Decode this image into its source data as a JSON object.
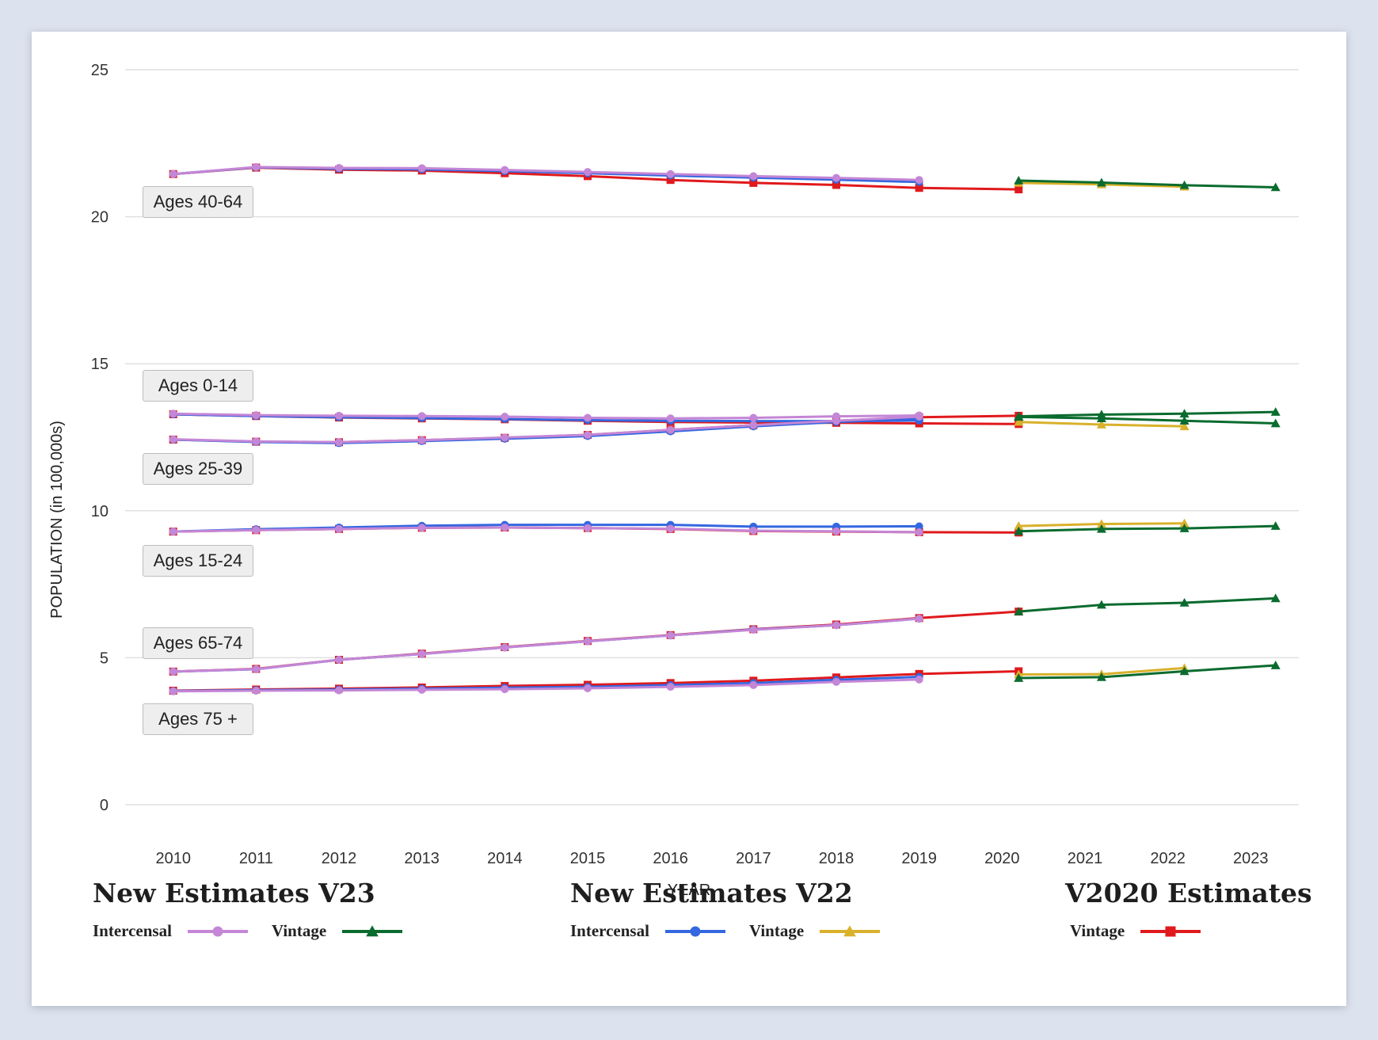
{
  "chart_data": {
    "type": "line",
    "title": "",
    "xlabel": "YEAR",
    "ylabel": "POPULATION (in 100,000s)",
    "ylim": [
      0,
      25
    ],
    "xlim": [
      2009.42,
      2023.58
    ],
    "y_ticks": [
      0,
      5,
      10,
      15,
      20,
      25
    ],
    "x_ticks": [
      2010,
      2011,
      2012,
      2013,
      2014,
      2015,
      2016,
      2017,
      2018,
      2019,
      2020,
      2021,
      2022,
      2023
    ],
    "grid": true,
    "age_groups": [
      "Ages 40-64",
      "Ages 0-14",
      "Ages 25-39",
      "Ages 15-24",
      "Ages 65-74",
      "Ages 75 +"
    ],
    "legend": [
      {
        "title": "New Estimates V23",
        "entries": [
          {
            "label": "Intercensal",
            "color": "#c486d6",
            "marker": "circle"
          },
          {
            "label": "Vintage",
            "color": "#0a6b2e",
            "marker": "triangle"
          }
        ]
      },
      {
        "title": "New Estimates V22",
        "entries": [
          {
            "label": "Intercensal",
            "color": "#3467e0",
            "marker": "circle"
          },
          {
            "label": "Vintage",
            "color": "#d9b12b",
            "marker": "triangle"
          }
        ]
      },
      {
        "title": "V2020 Estimates",
        "entries": [
          {
            "label": "Vintage",
            "color": "#e0191c",
            "marker": "square"
          }
        ]
      }
    ],
    "series": [
      {
        "estimate": "V2020 Estimates Vintage",
        "group": "Ages 40-64",
        "color": "#e0191c",
        "marker": "square",
        "x": [
          2010,
          2011,
          2012,
          2013,
          2014,
          2015,
          2016,
          2017,
          2018,
          2019,
          2020.2
        ],
        "values": [
          21.45,
          21.67,
          21.6,
          21.57,
          21.48,
          21.38,
          21.25,
          21.15,
          21.08,
          20.98,
          20.93
        ]
      },
      {
        "estimate": "New Estimates V22 Intercensal",
        "group": "Ages 40-64",
        "color": "#3467e0",
        "marker": "circle",
        "x": [
          2010,
          2011,
          2012,
          2013,
          2014,
          2015,
          2016,
          2017,
          2018,
          2019
        ],
        "values": [
          21.45,
          21.68,
          21.63,
          21.61,
          21.55,
          21.48,
          21.4,
          21.33,
          21.26,
          21.18
        ]
      },
      {
        "estimate": "New Estimates V23 Intercensal",
        "group": "Ages 40-64",
        "color": "#c486d6",
        "marker": "circle",
        "x": [
          2010,
          2011,
          2012,
          2013,
          2014,
          2015,
          2016,
          2017,
          2018,
          2019
        ],
        "values": [
          21.45,
          21.69,
          21.66,
          21.65,
          21.59,
          21.52,
          21.45,
          21.38,
          21.32,
          21.25
        ]
      },
      {
        "estimate": "New Estimates V22 Vintage",
        "group": "Ages 40-64",
        "color": "#d9b12b",
        "marker": "triangle",
        "x": [
          2020.2,
          2021.2,
          2022.2
        ],
        "values": [
          21.15,
          21.1,
          21.02
        ]
      },
      {
        "estimate": "New Estimates V23 Vintage",
        "group": "Ages 40-64",
        "color": "#0a6b2e",
        "marker": "triangle",
        "x": [
          2020.2,
          2021.2,
          2022.2,
          2023.3
        ],
        "values": [
          21.23,
          21.16,
          21.07,
          21.0
        ]
      },
      {
        "estimate": "V2020 Estimates Vintage",
        "group": "Ages 0-14",
        "color": "#e0191c",
        "marker": "square",
        "x": [
          2010,
          2011,
          2012,
          2013,
          2014,
          2015,
          2016,
          2017,
          2018,
          2019,
          2020.2
        ],
        "values": [
          13.28,
          13.22,
          13.17,
          13.14,
          13.11,
          13.06,
          13.02,
          13.0,
          12.99,
          12.97,
          12.95
        ]
      },
      {
        "estimate": "New Estimates V22 Intercensal",
        "group": "Ages 0-14",
        "color": "#3467e0",
        "marker": "circle",
        "x": [
          2010,
          2011,
          2012,
          2013,
          2014,
          2015,
          2016,
          2017,
          2018,
          2019
        ],
        "values": [
          13.28,
          13.22,
          13.18,
          13.15,
          13.12,
          13.08,
          13.06,
          13.05,
          13.05,
          13.07
        ]
      },
      {
        "estimate": "New Estimates V23 Intercensal",
        "group": "Ages 0-14",
        "color": "#c486d6",
        "marker": "circle",
        "x": [
          2010,
          2011,
          2012,
          2013,
          2014,
          2015,
          2016,
          2017,
          2018,
          2019
        ],
        "values": [
          13.3,
          13.25,
          13.23,
          13.22,
          13.2,
          13.16,
          13.14,
          13.16,
          13.21,
          13.24
        ]
      },
      {
        "estimate": "New Estimates V22 Vintage",
        "group": "Ages 0-14",
        "color": "#d9b12b",
        "marker": "triangle",
        "x": [
          2020.2,
          2021.2,
          2022.2
        ],
        "values": [
          13.02,
          12.93,
          12.87
        ]
      },
      {
        "estimate": "New Estimates V23 Vintage",
        "group": "Ages 0-14",
        "color": "#0a6b2e",
        "marker": "triangle",
        "x": [
          2020.2,
          2021.2,
          2022.2,
          2023.3
        ],
        "values": [
          13.19,
          13.14,
          13.06,
          12.97
        ]
      },
      {
        "estimate": "V2020 Estimates Vintage",
        "group": "Ages 25-39",
        "color": "#e0191c",
        "marker": "square",
        "x": [
          2010,
          2011,
          2012,
          2013,
          2014,
          2015,
          2016,
          2017,
          2018,
          2019,
          2020.2
        ],
        "values": [
          12.42,
          12.35,
          12.33,
          12.4,
          12.48,
          12.58,
          12.75,
          12.91,
          13.06,
          13.18,
          13.23
        ]
      },
      {
        "estimate": "New Estimates V22 Intercensal",
        "group": "Ages 25-39",
        "color": "#3467e0",
        "marker": "circle",
        "x": [
          2010,
          2011,
          2012,
          2013,
          2014,
          2015,
          2016,
          2017,
          2018,
          2019
        ],
        "values": [
          12.42,
          12.34,
          12.3,
          12.37,
          12.45,
          12.54,
          12.7,
          12.87,
          13.02,
          13.12
        ]
      },
      {
        "estimate": "New Estimates V23 Intercensal",
        "group": "Ages 25-39",
        "color": "#c486d6",
        "marker": "circle",
        "x": [
          2010,
          2011,
          2012,
          2013,
          2014,
          2015,
          2016,
          2017,
          2018,
          2019
        ],
        "values": [
          12.43,
          12.36,
          12.33,
          12.4,
          12.49,
          12.58,
          12.75,
          12.91,
          13.06,
          13.2
        ]
      },
      {
        "estimate": "New Estimates V23 Vintage",
        "group": "Ages 25-39",
        "color": "#0a6b2e",
        "marker": "triangle",
        "x": [
          2020.2,
          2021.2,
          2022.2,
          2023.3
        ],
        "values": [
          13.21,
          13.27,
          13.3,
          13.36
        ]
      },
      {
        "estimate": "V2020 Estimates Vintage",
        "group": "Ages 15-24",
        "color": "#e0191c",
        "marker": "square",
        "x": [
          2010,
          2011,
          2012,
          2013,
          2014,
          2015,
          2016,
          2017,
          2018,
          2019,
          2020.2
        ],
        "values": [
          9.29,
          9.34,
          9.38,
          9.42,
          9.43,
          9.41,
          9.38,
          9.31,
          9.29,
          9.27,
          9.26
        ]
      },
      {
        "estimate": "New Estimates V22 Intercensal",
        "group": "Ages 15-24",
        "color": "#3467e0",
        "marker": "circle",
        "x": [
          2010,
          2011,
          2012,
          2013,
          2014,
          2015,
          2016,
          2017,
          2018,
          2019
        ],
        "values": [
          9.29,
          9.37,
          9.43,
          9.49,
          9.52,
          9.52,
          9.52,
          9.46,
          9.46,
          9.47
        ]
      },
      {
        "estimate": "New Estimates V23 Intercensal",
        "group": "Ages 15-24",
        "color": "#c486d6",
        "marker": "circle",
        "x": [
          2010,
          2011,
          2012,
          2013,
          2014,
          2015,
          2016,
          2017,
          2018,
          2019
        ],
        "values": [
          9.29,
          9.34,
          9.38,
          9.42,
          9.43,
          9.41,
          9.39,
          9.32,
          9.3,
          9.27
        ]
      },
      {
        "estimate": "New Estimates V22 Vintage",
        "group": "Ages 15-24",
        "color": "#d9b12b",
        "marker": "triangle",
        "x": [
          2020.2,
          2021.2,
          2022.2
        ],
        "values": [
          9.48,
          9.55,
          9.57
        ]
      },
      {
        "estimate": "New Estimates V23 Vintage",
        "group": "Ages 15-24",
        "color": "#0a6b2e",
        "marker": "triangle",
        "x": [
          2020.2,
          2021.2,
          2022.2,
          2023.3
        ],
        "values": [
          9.3,
          9.38,
          9.4,
          9.48
        ]
      },
      {
        "estimate": "V2020 Estimates Vintage",
        "group": "Ages 65-74",
        "color": "#e0191c",
        "marker": "square",
        "x": [
          2010,
          2011,
          2012,
          2013,
          2014,
          2015,
          2016,
          2017,
          2018,
          2019,
          2020.2
        ],
        "values": [
          4.53,
          4.62,
          4.93,
          5.14,
          5.36,
          5.57,
          5.77,
          5.97,
          6.13,
          6.35,
          6.57
        ]
      },
      {
        "estimate": "New Estimates V22 Intercensal",
        "group": "Ages 65-74",
        "color": "#3467e0",
        "marker": "circle",
        "x": [
          2010,
          2011,
          2012,
          2013,
          2014,
          2015,
          2016,
          2017,
          2018,
          2019
        ],
        "values": [
          4.53,
          4.61,
          4.93,
          5.13,
          5.35,
          5.56,
          5.76,
          5.96,
          6.11,
          6.33
        ]
      },
      {
        "estimate": "New Estimates V23 Intercensal",
        "group": "Ages 65-74",
        "color": "#c486d6",
        "marker": "circle",
        "x": [
          2010,
          2011,
          2012,
          2013,
          2014,
          2015,
          2016,
          2017,
          2018,
          2019
        ],
        "values": [
          4.53,
          4.61,
          4.93,
          5.13,
          5.35,
          5.56,
          5.76,
          5.95,
          6.11,
          6.33
        ]
      },
      {
        "estimate": "New Estimates V23 Vintage",
        "group": "Ages 65-74",
        "color": "#0a6b2e",
        "marker": "triangle",
        "x": [
          2020.2,
          2021.2,
          2022.2,
          2023.3
        ],
        "values": [
          6.57,
          6.8,
          6.87,
          7.02
        ]
      },
      {
        "estimate": "V2020 Estimates Vintage",
        "group": "Ages 75 +",
        "color": "#e0191c",
        "marker": "square",
        "x": [
          2010,
          2011,
          2012,
          2013,
          2014,
          2015,
          2016,
          2017,
          2018,
          2019,
          2020.2
        ],
        "values": [
          3.88,
          3.92,
          3.95,
          3.99,
          4.04,
          4.08,
          4.14,
          4.22,
          4.33,
          4.45,
          4.54
        ]
      },
      {
        "estimate": "New Estimates V22 Intercensal",
        "group": "Ages 75 +",
        "color": "#3467e0",
        "marker": "circle",
        "x": [
          2010,
          2011,
          2012,
          2013,
          2014,
          2015,
          2016,
          2017,
          2018,
          2019
        ],
        "values": [
          3.87,
          3.9,
          3.92,
          3.95,
          3.98,
          4.01,
          4.07,
          4.14,
          4.25,
          4.35
        ]
      },
      {
        "estimate": "New Estimates V23 Intercensal",
        "group": "Ages 75 +",
        "color": "#c486d6",
        "marker": "circle",
        "x": [
          2010,
          2011,
          2012,
          2013,
          2014,
          2015,
          2016,
          2017,
          2018,
          2019
        ],
        "values": [
          3.86,
          3.88,
          3.89,
          3.91,
          3.93,
          3.96,
          4.01,
          4.07,
          4.18,
          4.26
        ]
      },
      {
        "estimate": "New Estimates V22 Vintage",
        "group": "Ages 75 +",
        "color": "#d9b12b",
        "marker": "triangle",
        "x": [
          2020.2,
          2021.2,
          2022.2
        ],
        "values": [
          4.43,
          4.44,
          4.65
        ]
      },
      {
        "estimate": "New Estimates V23 Vintage",
        "group": "Ages 75 +",
        "color": "#0a6b2e",
        "marker": "triangle",
        "x": [
          2020.2,
          2021.2,
          2022.2,
          2023.3
        ],
        "values": [
          4.31,
          4.34,
          4.54,
          4.74
        ]
      }
    ]
  }
}
